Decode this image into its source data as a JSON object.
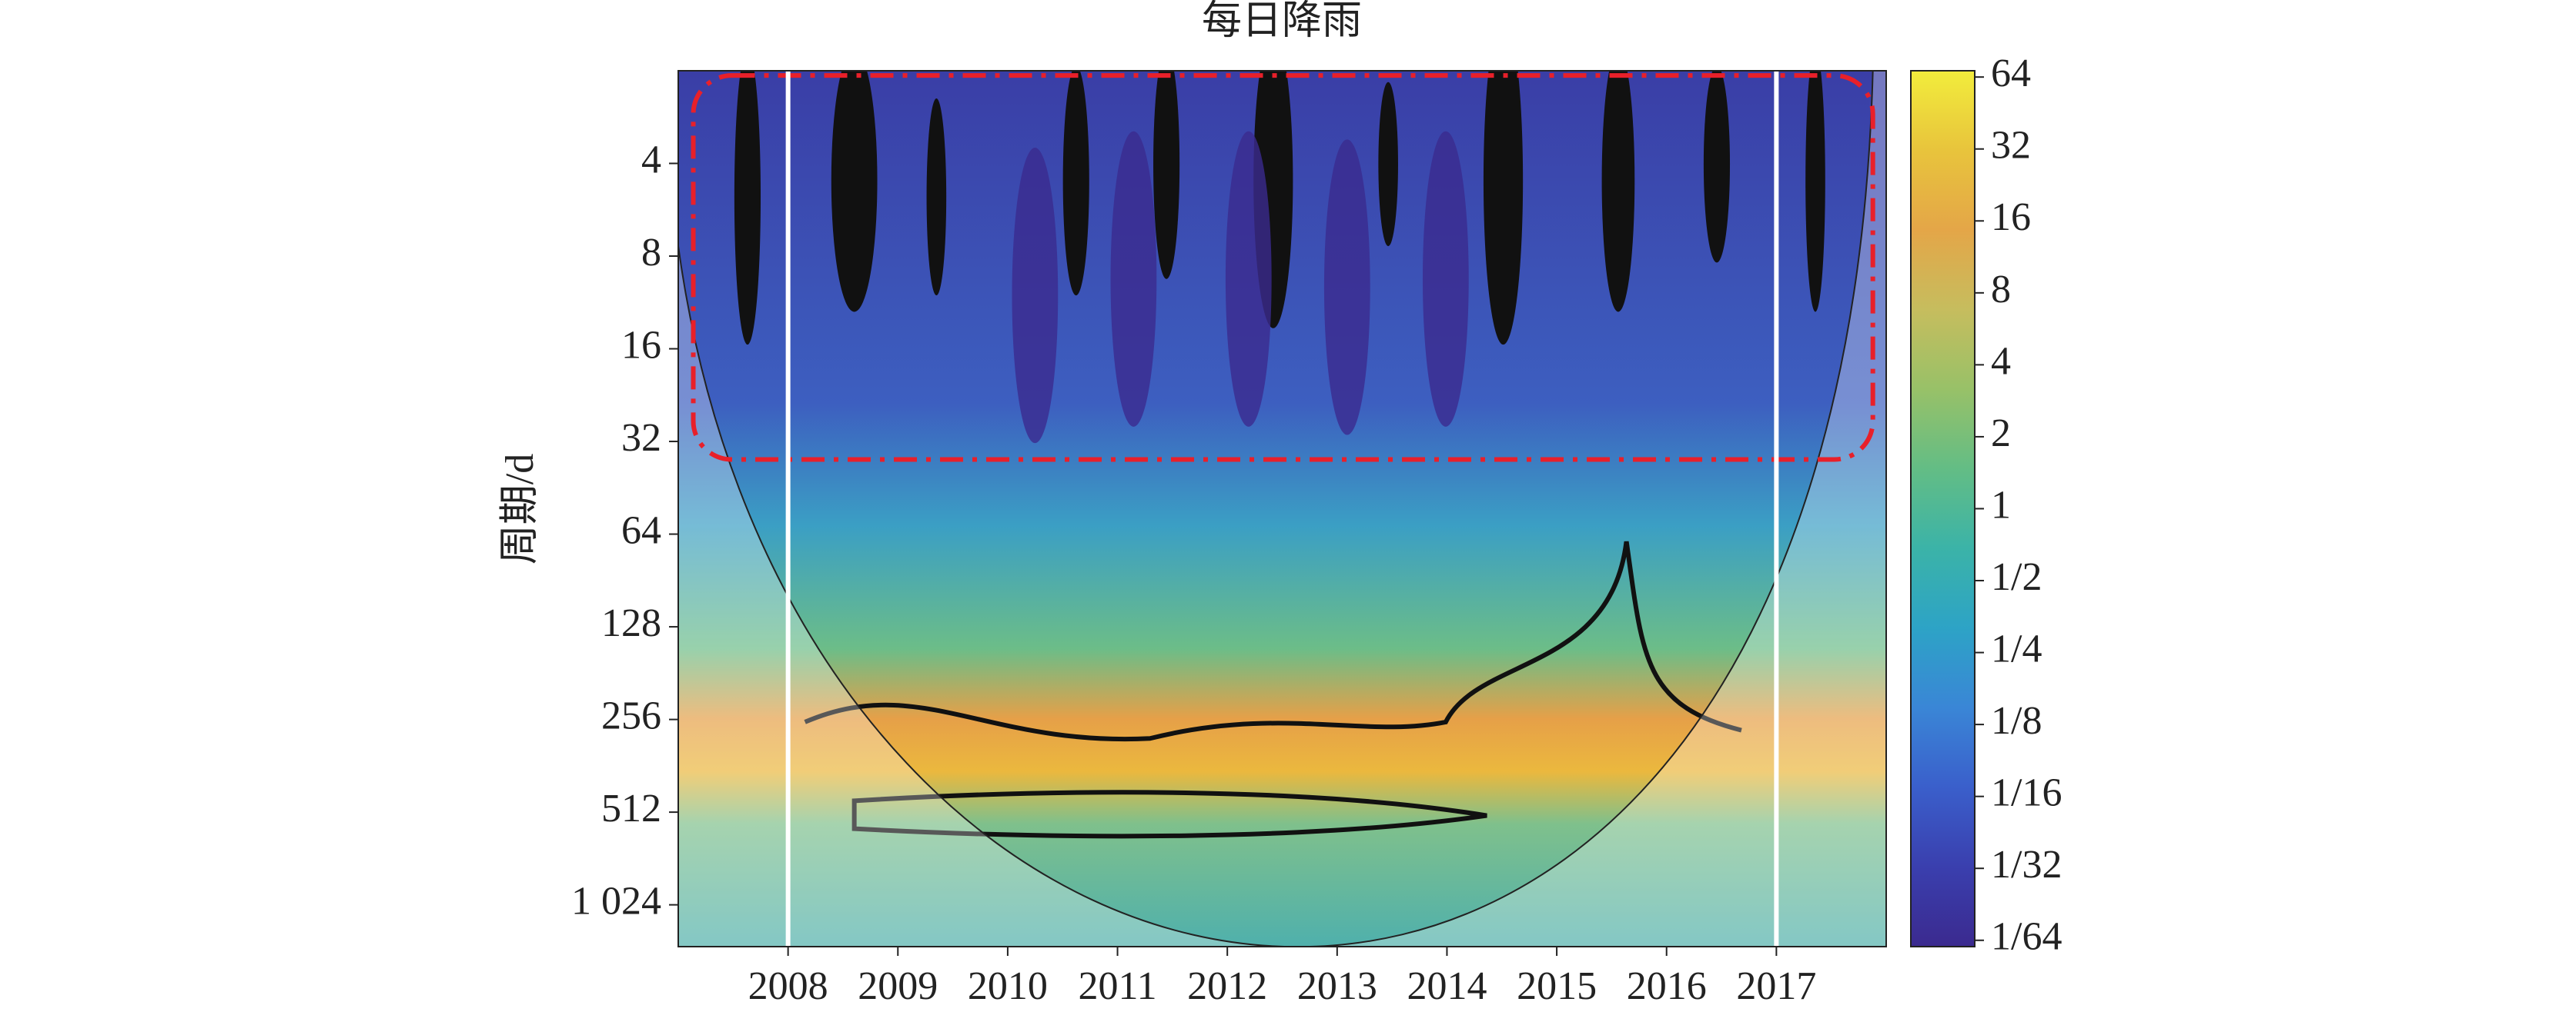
{
  "chart_data": {
    "type": "heatmap",
    "title": "每日降雨",
    "y_label": "周期/d",
    "xlim": [
      2007,
      2018
    ],
    "xticks": [
      2008,
      2009,
      2010,
      2011,
      2012,
      2013,
      2014,
      2015,
      2016,
      2017
    ],
    "ylim": [
      2,
      1400
    ],
    "y_log_base": 2,
    "y_inverted": true,
    "yticks": [
      4,
      8,
      16,
      32,
      64,
      128,
      256,
      512,
      {
        "value": 1024,
        "label": "1 024"
      }
    ],
    "colorbar": {
      "clim": [
        0.0147,
        68
      ],
      "log_base": 2,
      "ticks": [
        64,
        32,
        16,
        8,
        4,
        2,
        1,
        {
          "value": 0.5,
          "label": "1/2"
        },
        {
          "value": 0.25,
          "label": "1/4"
        },
        {
          "value": 0.125,
          "label": "1/8"
        },
        {
          "value": 0.0625,
          "label": "1/16"
        },
        {
          "value": 0.03125,
          "label": "1/32"
        },
        {
          "value": 0.015625,
          "label": "1/64"
        }
      ],
      "colormap": [
        "#3b2a8f",
        "#3a3fae",
        "#3a5fcb",
        "#3a86d6",
        "#2da3c6",
        "#3bb3a8",
        "#63bd85",
        "#98c168",
        "#c6bd5e",
        "#e4a648",
        "#e8c43c",
        "#f2ec3c"
      ]
    }
  }
}
